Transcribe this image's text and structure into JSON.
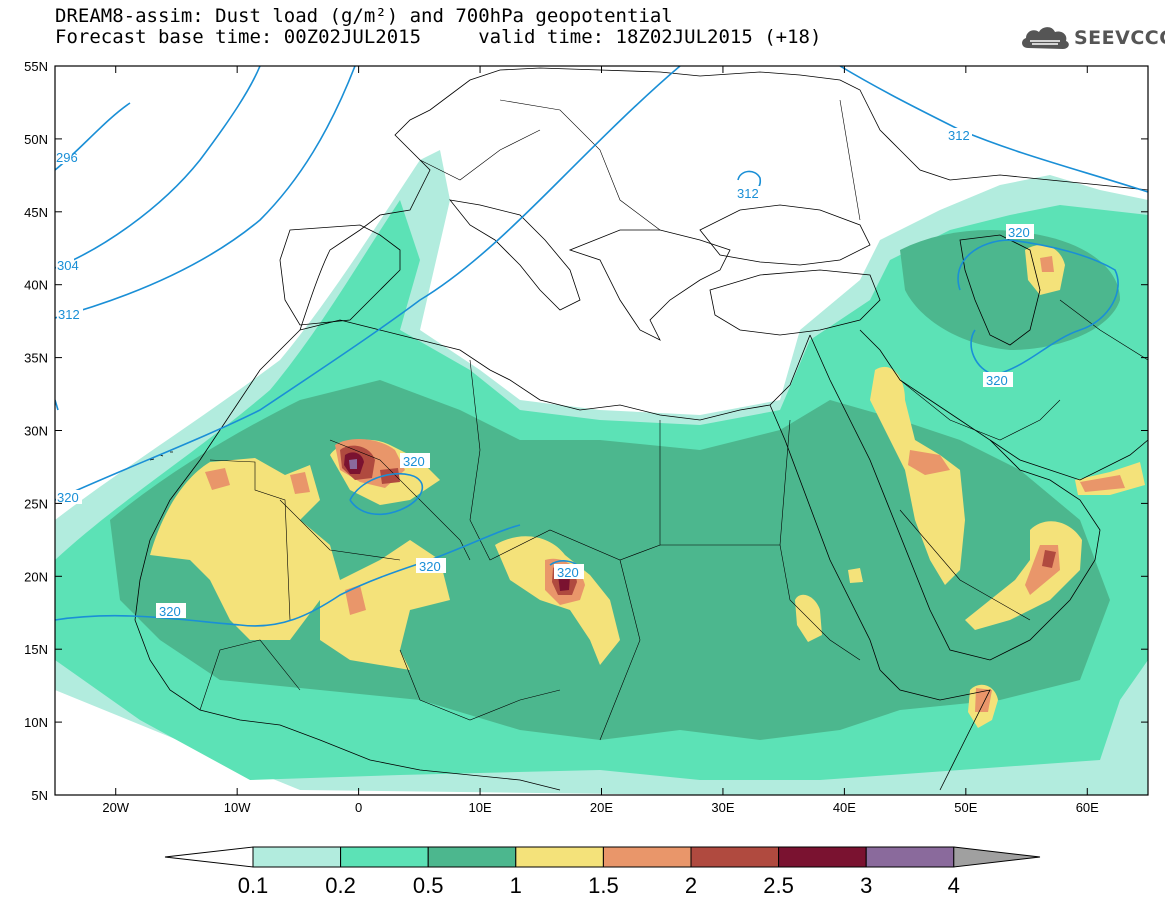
{
  "header": {
    "line1": "DREAM8-assim: Dust load (g/m²) and 700hPa geopotential",
    "line2": "Forecast base time: 00Z02JUL2015     valid time: 18Z02JUL2015 (+18)"
  },
  "logo": {
    "text": "SEEVCCC",
    "icon": "cloud-icon"
  },
  "map": {
    "lat_labels": [
      "55N",
      "50N",
      "45N",
      "40N",
      "35N",
      "30N",
      "25N",
      "20N",
      "15N",
      "10N",
      "5N"
    ],
    "lon_labels": [
      "20W",
      "10W",
      "0",
      "10E",
      "20E",
      "30E",
      "40E",
      "50E",
      "60E"
    ],
    "contour_labels": [
      "312",
      "320",
      "320",
      "320",
      "320",
      "320",
      "320",
      "312",
      "312",
      "304",
      "296",
      "320"
    ],
    "contour_color": "#1a8fd6"
  },
  "colorbar": {
    "labels": [
      "0.1",
      "0.2",
      "0.5",
      "1",
      "1.5",
      "2",
      "2.5",
      "3",
      "4"
    ],
    "colors": [
      "#ffffff",
      "#b2ecde",
      "#5ce2b6",
      "#4cb78e",
      "#f4e27a",
      "#e9966a",
      "#b04a3f",
      "#7a1230",
      "#8a6a9c",
      "#a0a0a0"
    ]
  },
  "shading": {
    "class_colors": [
      "#b2ecde",
      "#5ce2b6",
      "#4cb78e",
      "#f4e27a",
      "#e9966a",
      "#b04a3f",
      "#7a1230",
      "#8a6a9c"
    ]
  }
}
